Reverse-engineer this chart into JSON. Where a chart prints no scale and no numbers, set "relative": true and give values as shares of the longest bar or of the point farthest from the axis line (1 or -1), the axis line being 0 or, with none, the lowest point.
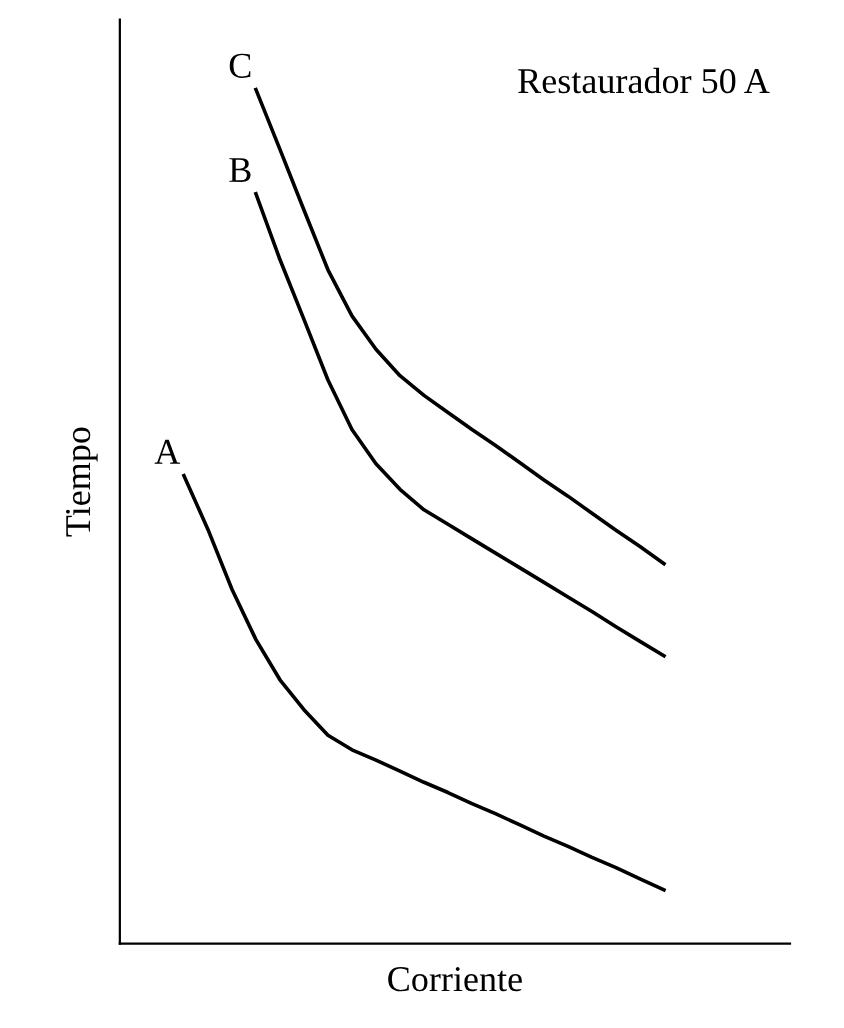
{
  "chart_data": {
    "type": "line",
    "relative": true,
    "xlabel": "Corriente",
    "ylabel": "Tiempo",
    "annotations": [
      "Restaurador 50 A"
    ],
    "categories": [
      null,
      null,
      null,
      null,
      null,
      null,
      null,
      null,
      null,
      null,
      null,
      null,
      null,
      null,
      null,
      null,
      null,
      null,
      null,
      null,
      null
    ],
    "marker": "none",
    "line_style": "solid",
    "legend": false,
    "series": [
      {
        "name": "A",
        "color": "#000000",
        "values": [
          0.548,
          0.485,
          0.415,
          0.356,
          0.309,
          0.274,
          0.244,
          0.227,
          0.215,
          0.202,
          0.189,
          0.177,
          0.164,
          0.152,
          0.139,
          0.126,
          0.114,
          0.101,
          0.089,
          0.076,
          0.063
        ]
      },
      {
        "name": "B",
        "color": "#000000",
        "values": [
          null,
          null,
          null,
          0.878,
          0.801,
          0.731,
          0.66,
          0.602,
          0.562,
          0.532,
          0.508,
          0.491,
          0.474,
          0.457,
          0.44,
          0.423,
          0.406,
          0.389,
          0.371,
          0.354,
          0.337
        ]
      },
      {
        "name": "C",
        "color": "#000000",
        "values": [
          null,
          null,
          null,
          1.0,
          0.93,
          0.859,
          0.789,
          0.735,
          0.696,
          0.665,
          0.642,
          0.622,
          0.602,
          0.583,
          0.563,
          0.543,
          0.524,
          0.504,
          0.484,
          0.465,
          0.445
        ]
      }
    ]
  }
}
